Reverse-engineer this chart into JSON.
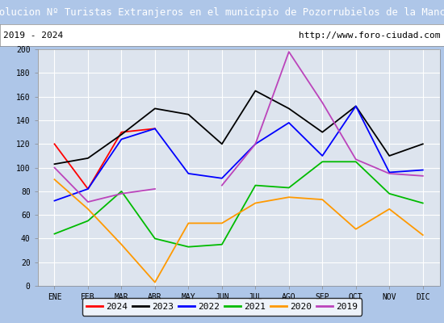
{
  "title": "Evolucion Nº Turistas Extranjeros en el municipio de Pozorrubielos de la Mancha",
  "subtitle_left": "2019 - 2024",
  "subtitle_right": "http://www.foro-ciudad.com",
  "x_labels": [
    "ENE",
    "FEB",
    "MAR",
    "ABR",
    "MAY",
    "JUN",
    "JUL",
    "AGO",
    "SEP",
    "OCT",
    "NOV",
    "DIC"
  ],
  "ylim": [
    0,
    200
  ],
  "yticks": [
    0,
    20,
    40,
    60,
    80,
    100,
    120,
    140,
    160,
    180,
    200
  ],
  "series": {
    "2024": {
      "color": "#ff0000",
      "values": [
        120,
        82,
        130,
        133,
        null,
        null,
        null,
        null,
        null,
        null,
        null,
        null
      ]
    },
    "2023": {
      "color": "#000000",
      "values": [
        103,
        108,
        128,
        150,
        145,
        120,
        165,
        150,
        130,
        152,
        110,
        120
      ]
    },
    "2022": {
      "color": "#0000ff",
      "values": [
        72,
        82,
        124,
        133,
        95,
        91,
        120,
        138,
        110,
        152,
        96,
        98
      ]
    },
    "2021": {
      "color": "#00bb00",
      "values": [
        44,
        55,
        80,
        40,
        33,
        35,
        85,
        83,
        105,
        105,
        78,
        70
      ]
    },
    "2020": {
      "color": "#ff9900",
      "values": [
        90,
        65,
        35,
        3,
        53,
        53,
        70,
        75,
        73,
        48,
        65,
        43
      ]
    },
    "2019": {
      "color": "#bb44bb",
      "values": [
        100,
        71,
        78,
        82,
        null,
        85,
        120,
        198,
        155,
        107,
        95,
        93
      ]
    }
  },
  "title_bg_color": "#5b8cc8",
  "title_font_color": "#ffffff",
  "subtitle_bg_color": "#ffffff",
  "plot_bg_color": "#dde4ee",
  "grid_color": "#ffffff",
  "fig_bg_color": "#aec6e8",
  "legend_order": [
    "2024",
    "2023",
    "2022",
    "2021",
    "2020",
    "2019"
  ]
}
